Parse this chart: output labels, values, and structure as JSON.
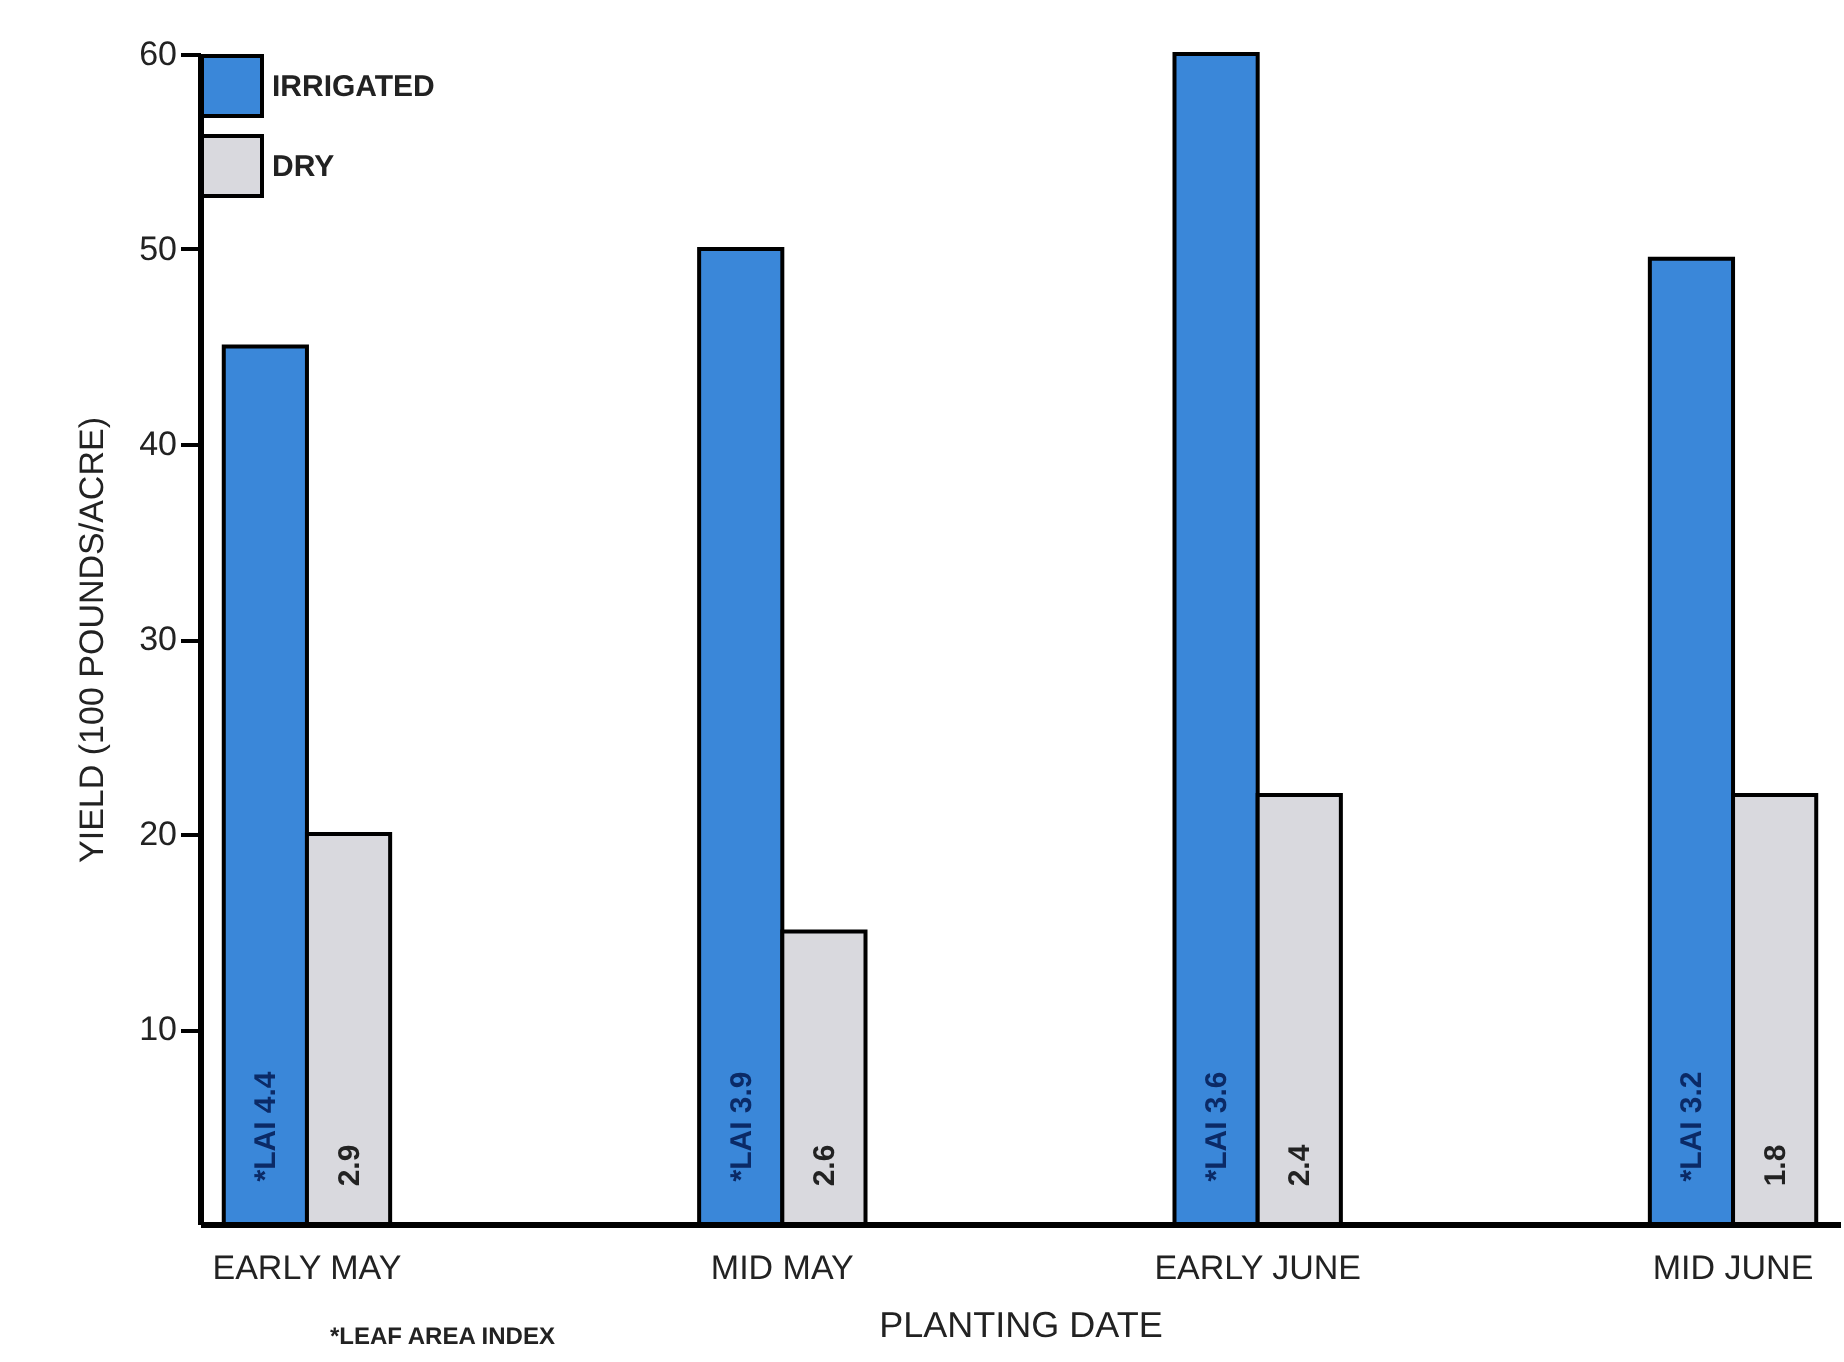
{
  "chart_data": {
    "type": "bar",
    "xlabel": "PLANTING DATE",
    "ylabel": "YIELD (100 POUNDS/ACRE)",
    "categories": [
      "EARLY MAY",
      "MID MAY",
      "EARLY JUNE",
      "MID JUNE"
    ],
    "series": [
      {
        "name": "IRRIGATED",
        "color": "#3a87d9",
        "values": [
          45,
          50,
          60,
          49.5
        ]
      },
      {
        "name": "DRY",
        "color": "#d9d9de",
        "values": [
          20,
          15,
          22,
          22
        ]
      }
    ],
    "ylim": [
      0,
      60
    ],
    "yticks": [
      10,
      20,
      30,
      40,
      50,
      60
    ],
    "grid": false,
    "legend": "top left",
    "annotations": [
      {
        "text": "*LAI 4.4",
        "x": "EARLY MAY",
        "y": 5
      },
      {
        "text": "2.9",
        "x": "EARLY MAY",
        "y": 3
      },
      {
        "text": "*LAI 3.9",
        "x": "MID MAY",
        "y": 5
      },
      {
        "text": "2.6",
        "x": "MID MAY",
        "y": 3
      },
      {
        "text": "*LAI 3.6",
        "x": "EARLY JUNE",
        "y": 5
      },
      {
        "text": "2.4",
        "x": "EARLY JUNE",
        "y": 3
      },
      {
        "text": "*LAI 3.2",
        "x": "MID JUNE",
        "y": 5
      },
      {
        "text": "1.8",
        "x": "MID JUNE",
        "y": 3
      },
      "*LEAF AREA INDEX"
    ]
  }
}
